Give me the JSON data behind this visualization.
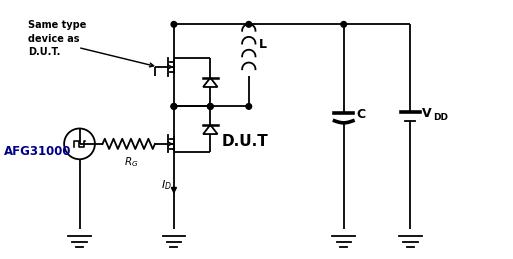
{
  "bg_color": "#ffffff",
  "lc": "#000000",
  "lw": 1.3,
  "figsize": [
    5.13,
    2.59
  ],
  "dpi": 100,
  "xlim": [
    0,
    10
  ],
  "ylim": [
    0,
    5
  ]
}
